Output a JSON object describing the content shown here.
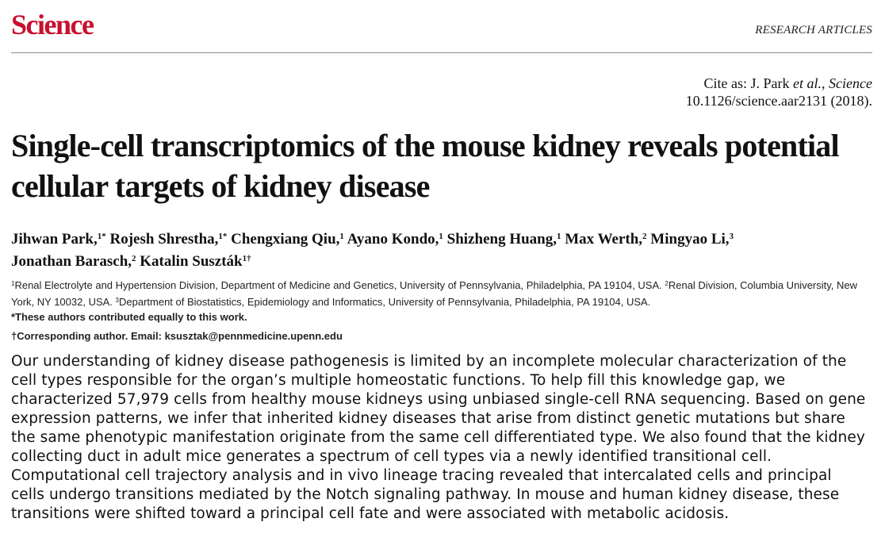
{
  "header": {
    "logo": "Science",
    "section": "RESEARCH ARTICLES"
  },
  "cite": {
    "prefix": "Cite as: J. Park ",
    "etal": "et al.",
    "comma": ", ",
    "journal": "Science",
    "doi_line": "10.1126/science.aar2131 (2018)."
  },
  "title": "Single-cell transcriptomics of the mouse kidney reveals potential cellular targets of kidney disease",
  "authors": [
    {
      "name": "Jihwan Park,",
      "sup": "1*"
    },
    {
      "name": "Rojesh Shrestha,",
      "sup": "1*"
    },
    {
      "name": "Chengxiang Qiu,",
      "sup": "1"
    },
    {
      "name": "Ayano Kondo,",
      "sup": "1"
    },
    {
      "name": "Shizheng Huang,",
      "sup": "1"
    },
    {
      "name": "Max Werth,",
      "sup": "2"
    },
    {
      "name": "Mingyao Li,",
      "sup": "3"
    },
    {
      "name": "Jonathan Barasch,",
      "sup": "2"
    },
    {
      "name": "Katalin Suszták",
      "sup": "1†"
    }
  ],
  "affiliations": [
    {
      "sup": "1",
      "text": "Renal Electrolyte and Hypertension Division, Department of Medicine and Genetics, University of Pennsylvania, Philadelphia, PA 19104, USA."
    },
    {
      "sup": "2",
      "text": "Renal Division, Columbia University, New York, NY 10032, USA."
    },
    {
      "sup": "3",
      "text": "Department of Biostatistics, Epidemiology and Informatics, University of Pennsylvania, Philadelphia, PA 19104, USA."
    }
  ],
  "notes": {
    "equal": "*These authors contributed equally to this work.",
    "corresponding": "†Corresponding author. Email: ksusztak@pennmedicine.upenn.edu"
  },
  "abstract": "Our understanding of kidney disease pathogenesis is limited by an incomplete molecular characterization of the cell types responsible for the organ’s multiple homeostatic functions. To help fill this knowledge gap, we characterized 57,979 cells from healthy mouse kidneys using unbiased single-cell RNA sequencing. Based on gene expression patterns, we infer that inherited kidney diseases that arise from distinct genetic mutations but share the same phenotypic manifestation originate from the same cell differentiated type. We also found that the kidney collecting duct in adult mice generates a spectrum of cell types via a newly identified transitional cell. Computational cell trajectory analysis and in vivo lineage tracing revealed that intercalated cells and principal cells undergo transitions mediated by the Notch signaling pathway. In mouse and human kidney disease, these transitions were shifted toward a principal cell fate and were associated with metabolic acidosis.",
  "colors": {
    "logo": "#c8102e",
    "rule": "#8a8a8a",
    "text": "#111111"
  }
}
